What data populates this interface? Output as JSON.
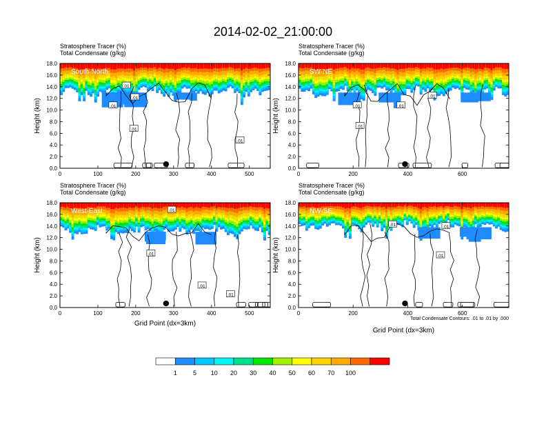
{
  "title": "2014-02-02_21:00:00",
  "panel_header_line1": "Stratosphere Tracer   (%)",
  "panel_header_line2": "Total Condensate   (g/kg)",
  "ylabel": "Height (km)",
  "xlabel": "Grid Point (dx=3km)",
  "contour_info": "Total Condensate Contours: .01 to .01 by .000",
  "colorbar": {
    "levels": [
      "1",
      "5",
      "10",
      "20",
      "30",
      "40",
      "50",
      "60",
      "70",
      "100"
    ],
    "colors": [
      "#ffffff",
      "#1e8cff",
      "#00c8ff",
      "#00f5f5",
      "#00e08c",
      "#00e600",
      "#a0f000",
      "#ffff00",
      "#ffd700",
      "#ffaa00",
      "#ff6a00",
      "#ff0000"
    ]
  },
  "chart_data": [
    {
      "type": "heatmap",
      "label": "South-North",
      "xlim": [
        0,
        555
      ],
      "ylim": [
        0,
        18
      ],
      "xticks": [
        "0",
        "100",
        "200",
        "300",
        "400",
        "500"
      ],
      "yticks": [
        "0.0",
        "2.0",
        "4.0",
        "6.0",
        "8.0",
        "10.0",
        "12.0",
        "14.0",
        "16.0",
        "18.0"
      ],
      "contour_labels": [
        {
          "text": ".01",
          "x": 175,
          "y": 14.2
        },
        {
          "text": ".01",
          "x": 140,
          "y": 10.8
        },
        {
          "text": ".01",
          "x": 198,
          "y": 12.2
        },
        {
          "text": ".01",
          "x": 195,
          "y": 6.8
        },
        {
          "text": ".01",
          "x": 475,
          "y": 4.8
        }
      ],
      "marker_x": 280
    },
    {
      "type": "heatmap",
      "label": "SW-NE",
      "xlim": [
        0,
        770
      ],
      "ylim": [
        0,
        18
      ],
      "xticks": [
        "0",
        "200",
        "400",
        "600"
      ],
      "yticks": [
        "0.0",
        "2.0",
        "4.0",
        "6.0",
        "8.0",
        "10.0",
        "12.0",
        "14.0",
        "16.0",
        "18.0"
      ],
      "contour_labels": [
        {
          "text": ".01",
          "x": 215,
          "y": 10.8
        },
        {
          "text": ".01",
          "x": 375,
          "y": 10.8
        },
        {
          "text": ".01",
          "x": 490,
          "y": 12.5
        },
        {
          "text": ".01",
          "x": 225,
          "y": 7.3
        }
      ],
      "marker_x": 390
    },
    {
      "type": "heatmap",
      "label": "West-East",
      "xlim": [
        0,
        555
      ],
      "ylim": [
        0,
        18
      ],
      "xticks": [
        "0",
        "100",
        "200",
        "300",
        "400",
        "500"
      ],
      "yticks": [
        "0.0",
        "2.0",
        "4.0",
        "6.0",
        "8.0",
        "10.0",
        "12.0",
        "14.0",
        "16.0",
        "18.0"
      ],
      "contour_labels": [
        {
          "text": ".01",
          "x": 295,
          "y": 16.8
        },
        {
          "text": ".01",
          "x": 240,
          "y": 9.3
        },
        {
          "text": ".01",
          "x": 375,
          "y": 3.8
        },
        {
          "text": ".01",
          "x": 450,
          "y": 2.3
        }
      ],
      "marker_x": 280
    },
    {
      "type": "heatmap",
      "label": "NW-SE",
      "xlim": [
        0,
        770
      ],
      "ylim": [
        0,
        18
      ],
      "xticks": [
        "0",
        "200",
        "400",
        "600"
      ],
      "yticks": [
        "0.0",
        "2.0",
        "4.0",
        "6.0",
        "8.0",
        "10.0",
        "12.0",
        "14.0",
        "16.0",
        "18.0"
      ],
      "contour_labels": [
        {
          "text": ".01",
          "x": 345,
          "y": 14.3
        },
        {
          "text": ".01",
          "x": 540,
          "y": 14.0
        },
        {
          "text": ".01",
          "x": 520,
          "y": 9.0
        }
      ],
      "marker_x": 390
    }
  ]
}
